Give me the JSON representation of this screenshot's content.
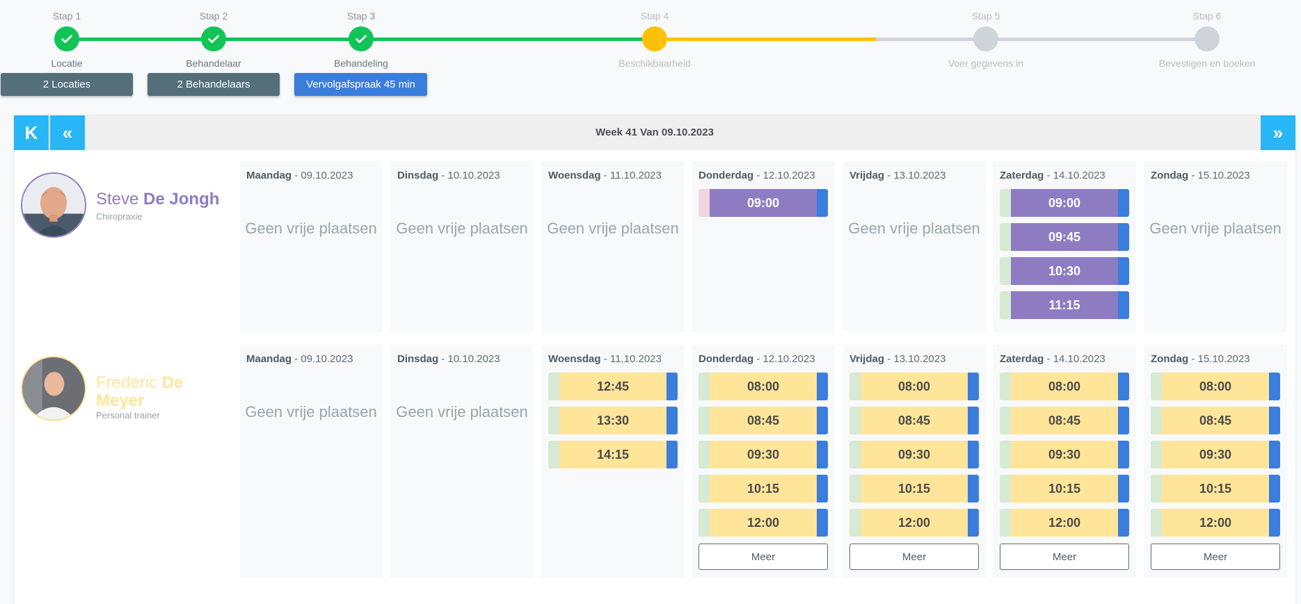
{
  "stepper": {
    "steps": [
      {
        "num": "Stap 1",
        "label": "Locatie",
        "state": "done"
      },
      {
        "num": "Stap 2",
        "label": "Behandelaar",
        "state": "done"
      },
      {
        "num": "Stap 3",
        "label": "Behandeling",
        "state": "done"
      },
      {
        "num": "Stap 4",
        "label": "Beschikbaarheid",
        "state": "active"
      },
      {
        "num": "Stap 5",
        "label": "Voer gegevens in",
        "state": "todo"
      },
      {
        "num": "Stap 6",
        "label": "Bevestigen en boeken",
        "state": "todo"
      }
    ],
    "colors": {
      "done": "#10c456",
      "active": "#ffc107",
      "todo": "#ced4da"
    }
  },
  "selections": {
    "locations": "2 Locaties",
    "practitioners": "2 Behandelaars",
    "treatment": "Vervolgafspraak 45 min"
  },
  "calendar": {
    "week_title": "Week 41 Van 09.10.2023",
    "nav": {
      "first": "K",
      "prev": "«",
      "next": "»"
    },
    "empty_text": "Geen vrije plaatsen",
    "more_label": "Meer",
    "people": [
      {
        "first": "Steve",
        "last": "De Jongh",
        "role": "Chiropraxie",
        "color": "#8e7cc3",
        "days": [
          {
            "name": "Maandag",
            "date": " - 09.10.2023",
            "slots": []
          },
          {
            "name": "Dinsdag",
            "date": " - 10.10.2023",
            "slots": []
          },
          {
            "name": "Woensdag",
            "date": " - 11.10.2023",
            "slots": []
          },
          {
            "name": "Donderdag",
            "date": " - 12.10.2023",
            "slots": [
              "09:00"
            ]
          },
          {
            "name": "Vrijdag",
            "date": " - 13.10.2023",
            "slots": []
          },
          {
            "name": "Zaterdag",
            "date": " - 14.10.2023",
            "slots": [
              "09:00",
              "09:45",
              "10:30",
              "11:15"
            ]
          },
          {
            "name": "Zondag",
            "date": " - 15.10.2023",
            "slots": []
          }
        ]
      },
      {
        "first": "Frederic",
        "last": "De Meyer",
        "role": "Personal trainer",
        "color": "#ffe599",
        "days": [
          {
            "name": "Maandag",
            "date": " - 09.10.2023",
            "slots": []
          },
          {
            "name": "Dinsdag",
            "date": " - 10.10.2023",
            "slots": []
          },
          {
            "name": "Woensdag",
            "date": " - 11.10.2023",
            "slots": [
              "12:45",
              "13:30",
              "14:15"
            ]
          },
          {
            "name": "Donderdag",
            "date": " - 12.10.2023",
            "slots": [
              "08:00",
              "08:45",
              "09:30",
              "10:15",
              "12:00"
            ],
            "more": true
          },
          {
            "name": "Vrijdag",
            "date": " - 13.10.2023",
            "slots": [
              "08:00",
              "08:45",
              "09:30",
              "10:15",
              "12:00"
            ],
            "more": true
          },
          {
            "name": "Zaterdag",
            "date": " - 14.10.2023",
            "slots": [
              "08:00",
              "08:45",
              "09:30",
              "10:15",
              "12:00"
            ],
            "more": true
          },
          {
            "name": "Zondag",
            "date": " - 15.10.2023",
            "slots": [
              "08:00",
              "08:45",
              "09:30",
              "10:15",
              "12:00"
            ],
            "more": true
          }
        ]
      }
    ]
  }
}
